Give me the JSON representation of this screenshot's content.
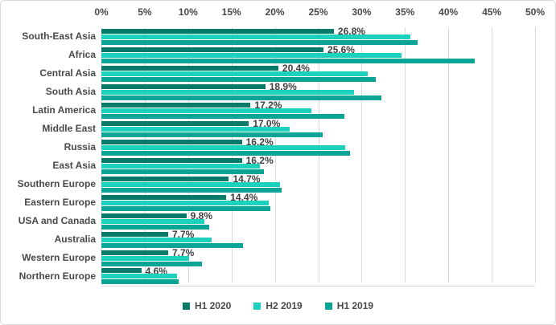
{
  "chart": {
    "x_axis": {
      "ticks": [
        "0%",
        "5%",
        "10%",
        "15%",
        "20%",
        "25%",
        "30%",
        "35%",
        "40%",
        "45%",
        "50%"
      ],
      "min": 0,
      "max": 50
    },
    "colors": {
      "background": "#ffffff",
      "border": "#d9d9d9",
      "gridline": "#d9d9d9",
      "text": "#47494b"
    }
  },
  "chart_data": {
    "type": "bar",
    "orientation": "horizontal",
    "title": "",
    "xlabel": "",
    "ylabel": "",
    "xlim": [
      0,
      50
    ],
    "grid": true,
    "legend_position": "bottom",
    "data_labels_on_series": "H1 2020",
    "categories": [
      "South-East Asia",
      "Africa",
      "Central Asia",
      "South Asia",
      "Latin America",
      "Middle East",
      "Russia",
      "East Asia",
      "Southern Europe",
      "Eastern Europe",
      "USA and Canada",
      "Australia",
      "Western Europe",
      "Northern Europe"
    ],
    "series": [
      {
        "name": "H1 2020",
        "color": "#077a69",
        "values": [
          26.8,
          25.6,
          20.4,
          18.9,
          17.2,
          17.0,
          16.2,
          16.2,
          14.7,
          14.4,
          9.8,
          7.7,
          7.7,
          4.6
        ],
        "data_labels": [
          "26.8%",
          "25.6%",
          "20.4%",
          "18.9%",
          "17.2%",
          "17.0%",
          "16.2%",
          "16.2%",
          "14.7%",
          "14.4%",
          "9.8%",
          "7.7%",
          "7.7%",
          "4.6%"
        ]
      },
      {
        "name": "H2 2019",
        "color": "#1dd1bf",
        "values": [
          35.6,
          34.6,
          30.7,
          29.1,
          24.2,
          21.7,
          28.1,
          18.3,
          20.6,
          19.3,
          11.9,
          12.7,
          10.1,
          8.7
        ]
      },
      {
        "name": "H1 2019",
        "color": "#0aa597",
        "values": [
          36.5,
          43.0,
          31.6,
          32.3,
          28.0,
          25.5,
          28.7,
          18.7,
          20.8,
          19.5,
          12.4,
          16.3,
          11.6,
          8.9
        ]
      }
    ]
  }
}
